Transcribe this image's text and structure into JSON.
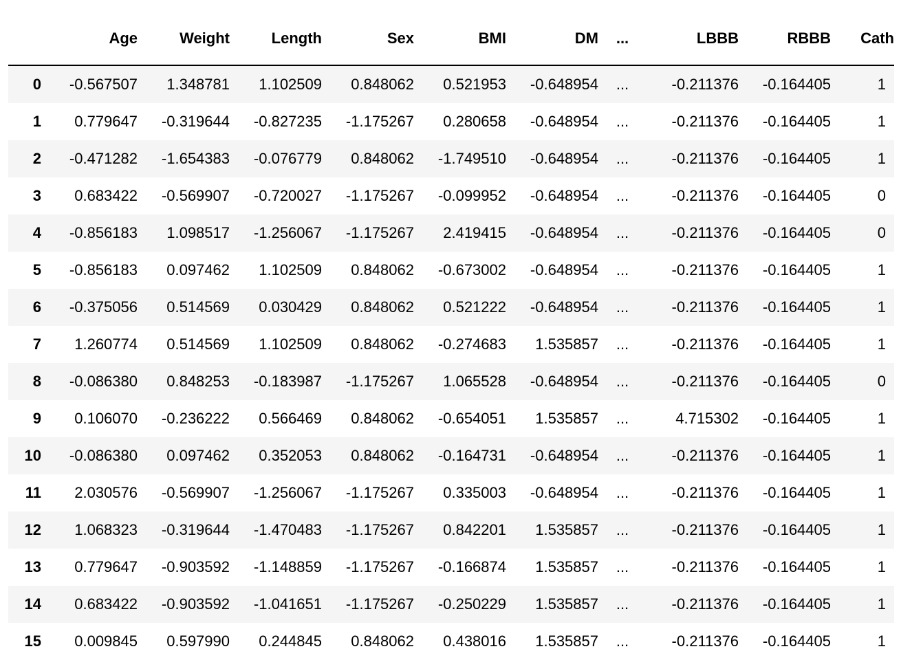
{
  "dataframe": {
    "columns": [
      "Age",
      "Weight",
      "Length",
      "Sex",
      "BMI",
      "DM",
      "...",
      "LBBB",
      "RBBB",
      "Cath"
    ],
    "rows": [
      {
        "index": "0",
        "values": [
          "-0.567507",
          "1.348781",
          "1.102509",
          "0.848062",
          "0.521953",
          "-0.648954",
          "...",
          "-0.211376",
          "-0.164405",
          "1"
        ]
      },
      {
        "index": "1",
        "values": [
          "0.779647",
          "-0.319644",
          "-0.827235",
          "-1.175267",
          "0.280658",
          "-0.648954",
          "...",
          "-0.211376",
          "-0.164405",
          "1"
        ]
      },
      {
        "index": "2",
        "values": [
          "-0.471282",
          "-1.654383",
          "-0.076779",
          "0.848062",
          "-1.749510",
          "-0.648954",
          "...",
          "-0.211376",
          "-0.164405",
          "1"
        ]
      },
      {
        "index": "3",
        "values": [
          "0.683422",
          "-0.569907",
          "-0.720027",
          "-1.175267",
          "-0.099952",
          "-0.648954",
          "...",
          "-0.211376",
          "-0.164405",
          "0"
        ]
      },
      {
        "index": "4",
        "values": [
          "-0.856183",
          "1.098517",
          "-1.256067",
          "-1.175267",
          "2.419415",
          "-0.648954",
          "...",
          "-0.211376",
          "-0.164405",
          "0"
        ]
      },
      {
        "index": "5",
        "values": [
          "-0.856183",
          "0.097462",
          "1.102509",
          "0.848062",
          "-0.673002",
          "-0.648954",
          "...",
          "-0.211376",
          "-0.164405",
          "1"
        ]
      },
      {
        "index": "6",
        "values": [
          "-0.375056",
          "0.514569",
          "0.030429",
          "0.848062",
          "0.521222",
          "-0.648954",
          "...",
          "-0.211376",
          "-0.164405",
          "1"
        ]
      },
      {
        "index": "7",
        "values": [
          "1.260774",
          "0.514569",
          "1.102509",
          "0.848062",
          "-0.274683",
          "1.535857",
          "...",
          "-0.211376",
          "-0.164405",
          "1"
        ]
      },
      {
        "index": "8",
        "values": [
          "-0.086380",
          "0.848253",
          "-0.183987",
          "-1.175267",
          "1.065528",
          "-0.648954",
          "...",
          "-0.211376",
          "-0.164405",
          "0"
        ]
      },
      {
        "index": "9",
        "values": [
          "0.106070",
          "-0.236222",
          "0.566469",
          "0.848062",
          "-0.654051",
          "1.535857",
          "...",
          "4.715302",
          "-0.164405",
          "1"
        ]
      },
      {
        "index": "10",
        "values": [
          "-0.086380",
          "0.097462",
          "0.352053",
          "0.848062",
          "-0.164731",
          "-0.648954",
          "...",
          "-0.211376",
          "-0.164405",
          "1"
        ]
      },
      {
        "index": "11",
        "values": [
          "2.030576",
          "-0.569907",
          "-1.256067",
          "-1.175267",
          "0.335003",
          "-0.648954",
          "...",
          "-0.211376",
          "-0.164405",
          "1"
        ]
      },
      {
        "index": "12",
        "values": [
          "1.068323",
          "-0.319644",
          "-1.470483",
          "-1.175267",
          "0.842201",
          "1.535857",
          "...",
          "-0.211376",
          "-0.164405",
          "1"
        ]
      },
      {
        "index": "13",
        "values": [
          "0.779647",
          "-0.903592",
          "-1.148859",
          "-1.175267",
          "-0.166874",
          "1.535857",
          "...",
          "-0.211376",
          "-0.164405",
          "1"
        ]
      },
      {
        "index": "14",
        "values": [
          "0.683422",
          "-0.903592",
          "-1.041651",
          "-1.175267",
          "-0.250229",
          "1.535857",
          "...",
          "-0.211376",
          "-0.164405",
          "1"
        ]
      },
      {
        "index": "15",
        "values": [
          "0.009845",
          "0.597990",
          "0.244845",
          "0.848062",
          "0.438016",
          "1.535857",
          "...",
          "-0.211376",
          "-0.164405",
          "1"
        ]
      }
    ]
  },
  "colors": {
    "stripe": "#f5f5f5",
    "text": "#000000",
    "header_rule": "#000000"
  }
}
